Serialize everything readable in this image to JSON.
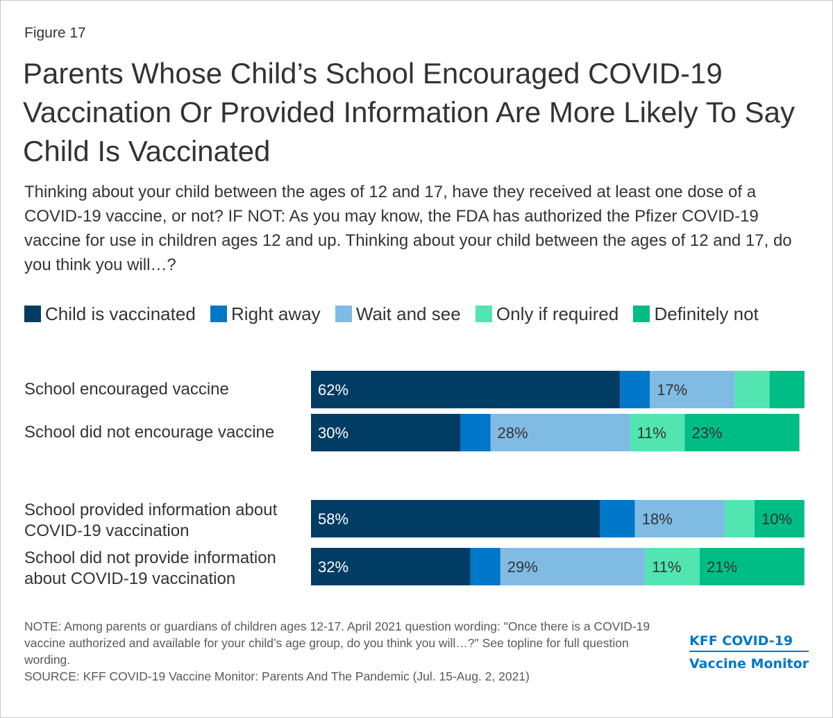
{
  "figure_label": "Figure 17",
  "title": "Parents Whose Child’s School Encouraged COVID-19 Vaccination Or Provided Information Are More Likely To Say Child Is Vaccinated",
  "subtitle": "Thinking about your child between the ages of 12 and 17, have they received at least one dose of a COVID-19 vaccine, or not? IF NOT: As you may know, the FDA has authorized the Pfizer COVID-19 vaccine for use in children ages 12 and up. Thinking about your child between the ages of 12 and 17, do you think you will…?",
  "note": "NOTE: Among parents or guardians of children ages 12-17. April 2021 question wording: \"Once there is a COVID-19 vaccine authorized and available for your child’s age group, do you think you will…?\" See topline for full question wording.",
  "source": "SOURCE: KFF COVID-19 Vaccine Monitor: Parents And The Pandemic (Jul. 15-Aug. 2, 2021)",
  "brand": {
    "line1": "KFF COVID-19",
    "line2": "Vaccine Monitor"
  },
  "chart_data": {
    "type": "bar",
    "orientation": "horizontal",
    "stacked": true,
    "legend_position": "top",
    "xlim": [
      0,
      100
    ],
    "series": [
      {
        "name": "Child is vaccinated",
        "color": "#003c64",
        "values": [
          62,
          30,
          58,
          32
        ]
      },
      {
        "name": "Right away",
        "color": "#0077c8",
        "values": [
          6,
          6,
          7,
          6
        ]
      },
      {
        "name": "Wait and see",
        "color": "#80bbe4",
        "values": [
          17,
          28,
          18,
          29
        ]
      },
      {
        "name": "Only if required",
        "color": "#52e5b2",
        "values": [
          7,
          11,
          6,
          11
        ]
      },
      {
        "name": "Definitely not",
        "color": "#00bd86",
        "values": [
          7,
          23,
          10,
          21
        ]
      }
    ],
    "label_threshold": 9,
    "categories": [
      "School encouraged vaccine",
      "School did not encourage vaccine",
      "School provided information about COVID-19 vaccination",
      "School did not provide information about COVID-19 vaccination"
    ],
    "category_label_lines": [
      [
        "School encouraged vaccine"
      ],
      [
        "School did not encourage vaccine"
      ],
      [
        "School provided information about",
        "COVID-19 vaccination"
      ],
      [
        "School did not provide information",
        "about COVID-19 vaccination"
      ]
    ]
  }
}
